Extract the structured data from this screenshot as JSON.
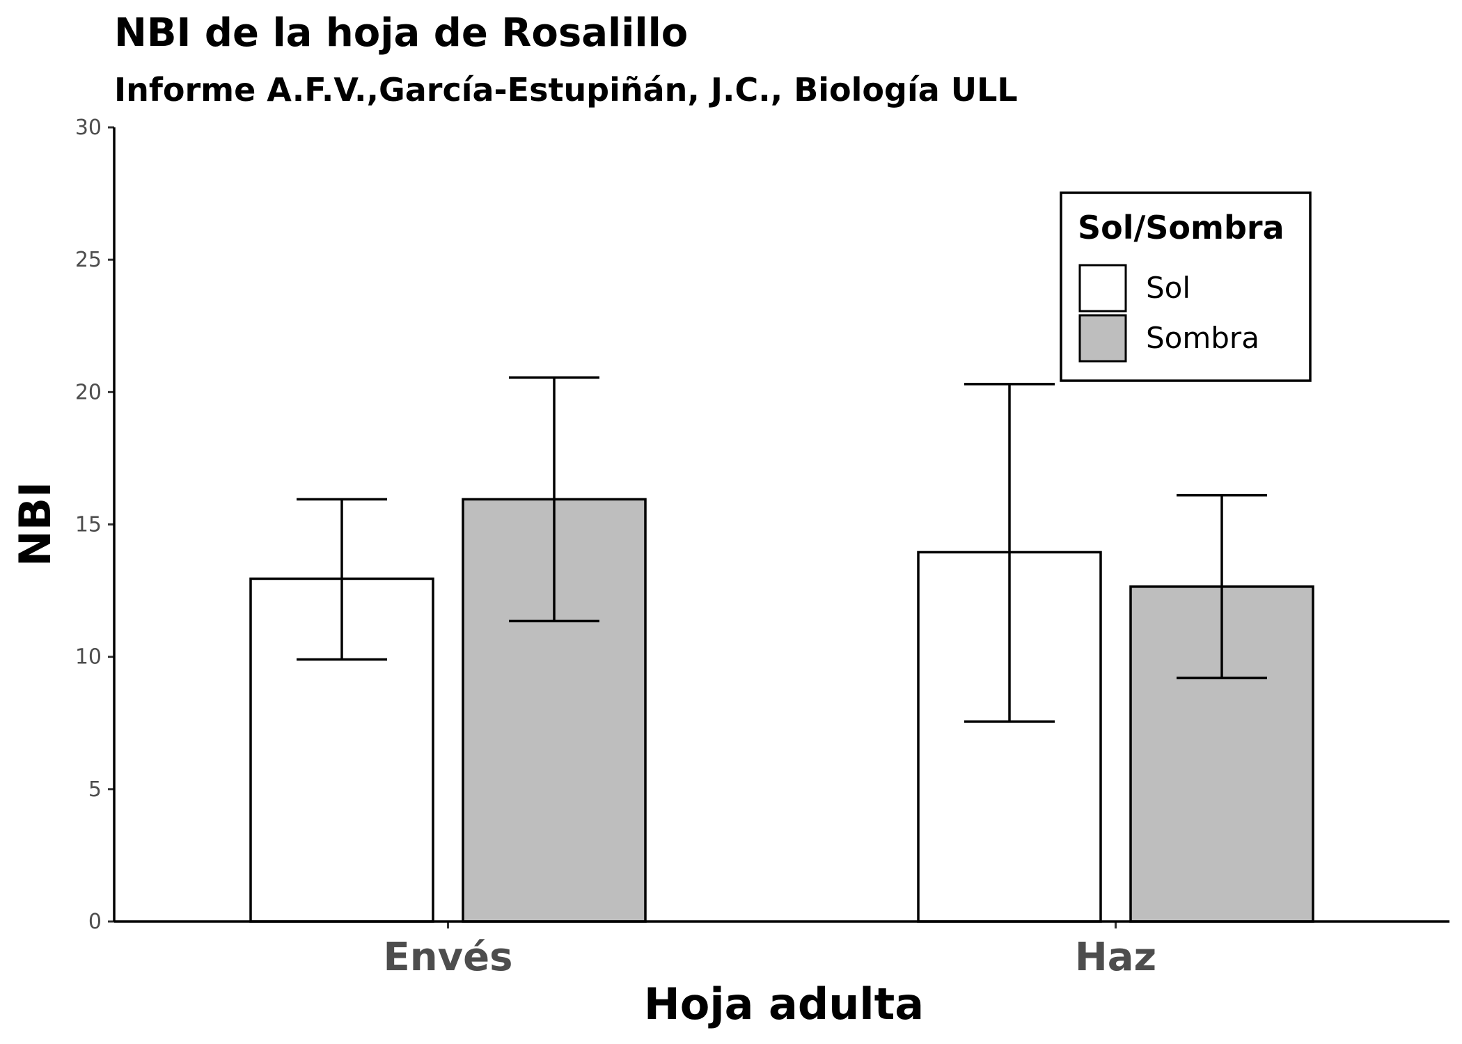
{
  "chart_data": {
    "type": "bar",
    "title": "NBI de la hoja de Rosalillo",
    "subtitle": "Informe A.F.V.,García-Estupiñán, J.C., Biología ULL",
    "xlabel": "Hoja adulta",
    "ylabel": "NBI",
    "categories": [
      "Envés",
      "Haz"
    ],
    "ylim": [
      0,
      30
    ],
    "yticks": [
      0,
      5,
      10,
      15,
      20,
      25,
      30
    ],
    "grid": false,
    "legend": {
      "title": "Sol/Sombra",
      "position": "top-right"
    },
    "series": [
      {
        "name": "Sol",
        "color": "#ffffff",
        "values": [
          12.95,
          13.95
        ],
        "error_low": [
          9.9,
          7.55
        ],
        "error_high": [
          15.95,
          20.3
        ]
      },
      {
        "name": "Sombra",
        "color": "#bebebe",
        "values": [
          15.95,
          12.65
        ],
        "error_low": [
          11.35,
          9.2
        ],
        "error_high": [
          20.55,
          16.1
        ]
      }
    ]
  }
}
